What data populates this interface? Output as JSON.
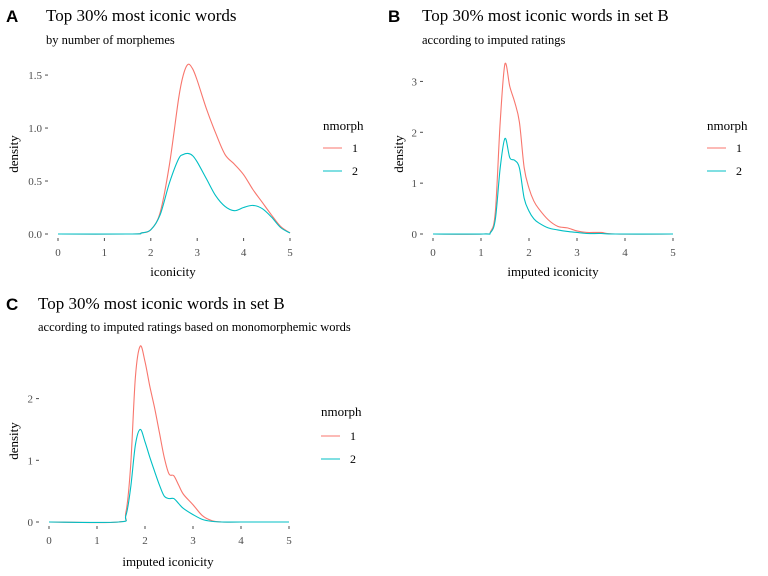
{
  "colors": {
    "series1": "#F8766D",
    "series2": "#00BFC4",
    "tick": "#4d4d4d"
  },
  "chart_data": [
    {
      "panel_label": "A",
      "type": "line",
      "title": "Top 30% most iconic words",
      "subtitle": "by number of morphemes",
      "xlabel": "iconicity",
      "ylabel": "density",
      "xlim": [
        0,
        5
      ],
      "ylim": [
        0,
        1.68
      ],
      "x_ticks": [
        "0",
        "1",
        "2",
        "3",
        "4",
        "5"
      ],
      "y_ticks": [
        "0.0",
        "0.5",
        "1.0",
        "1.5"
      ],
      "y_tick_values": [
        0,
        0.5,
        1.0,
        1.5
      ],
      "legend_title": "nmorph",
      "grid": false,
      "series": [
        {
          "name": "1",
          "color": "#F8766D",
          "x": [
            0,
            1.6,
            1.8,
            2.0,
            2.2,
            2.4,
            2.6,
            2.7,
            2.8,
            2.9,
            3.0,
            3.2,
            3.4,
            3.6,
            3.8,
            4.0,
            4.2,
            4.4,
            4.6,
            4.8,
            5.0
          ],
          "y": [
            0,
            0,
            0.01,
            0.04,
            0.2,
            0.65,
            1.28,
            1.5,
            1.6,
            1.56,
            1.45,
            1.18,
            0.95,
            0.75,
            0.66,
            0.56,
            0.42,
            0.3,
            0.18,
            0.07,
            0.01
          ]
        },
        {
          "name": "2",
          "color": "#00BFC4",
          "x": [
            0,
            1.6,
            1.8,
            2.0,
            2.2,
            2.4,
            2.6,
            2.7,
            2.8,
            2.9,
            3.0,
            3.2,
            3.4,
            3.6,
            3.8,
            4.0,
            4.2,
            4.4,
            4.6,
            4.8,
            5.0
          ],
          "y": [
            0,
            0,
            0.01,
            0.04,
            0.18,
            0.48,
            0.71,
            0.75,
            0.76,
            0.74,
            0.68,
            0.52,
            0.36,
            0.26,
            0.22,
            0.25,
            0.27,
            0.24,
            0.16,
            0.06,
            0.01
          ]
        }
      ]
    },
    {
      "panel_label": "B",
      "type": "line",
      "title": "Top 30% most iconic words in set B",
      "subtitle": "according to imputed ratings",
      "xlabel": "imputed iconicity",
      "ylabel": "density",
      "xlim": [
        0,
        5
      ],
      "ylim": [
        0,
        3.5
      ],
      "x_ticks": [
        "0",
        "1",
        "2",
        "3",
        "4",
        "5"
      ],
      "y_ticks": [
        "0",
        "1",
        "2",
        "3"
      ],
      "y_tick_values": [
        0,
        1,
        2,
        3
      ],
      "legend_title": "nmorph",
      "grid": false,
      "series": [
        {
          "name": "1",
          "color": "#F8766D",
          "x": [
            0,
            1.05,
            1.2,
            1.3,
            1.4,
            1.5,
            1.6,
            1.7,
            1.8,
            1.9,
            2.0,
            2.1,
            2.2,
            2.4,
            2.6,
            2.8,
            3.0,
            3.2,
            3.5,
            3.8,
            5.0
          ],
          "y": [
            0,
            0,
            0.05,
            0.45,
            2.2,
            3.35,
            2.9,
            2.6,
            2.2,
            1.3,
            0.9,
            0.65,
            0.5,
            0.28,
            0.15,
            0.12,
            0.06,
            0.03,
            0.03,
            0.0,
            0
          ]
        },
        {
          "name": "2",
          "color": "#00BFC4",
          "x": [
            0,
            1.05,
            1.2,
            1.3,
            1.4,
            1.5,
            1.6,
            1.7,
            1.8,
            1.9,
            2.0,
            2.1,
            2.2,
            2.4,
            2.6,
            2.8,
            3.0,
            3.2,
            3.5,
            3.8,
            5.0
          ],
          "y": [
            0,
            0,
            0.03,
            0.3,
            1.3,
            1.88,
            1.5,
            1.45,
            1.3,
            0.7,
            0.45,
            0.3,
            0.22,
            0.12,
            0.08,
            0.05,
            0.03,
            0.01,
            0.01,
            0.0,
            0
          ]
        }
      ]
    },
    {
      "panel_label": "C",
      "type": "line",
      "title": "Top 30% most iconic words in set B",
      "subtitle": "according to imputed ratings based on monomorphemic words",
      "xlabel": "imputed iconicity",
      "ylabel": "density",
      "xlim": [
        0,
        5
      ],
      "ylim": [
        0,
        2.95
      ],
      "x_ticks": [
        "0",
        "1",
        "2",
        "3",
        "4",
        "5"
      ],
      "y_ticks": [
        "0",
        "1",
        "2"
      ],
      "y_tick_values": [
        0,
        1,
        2
      ],
      "legend_title": "nmorph",
      "grid": false,
      "series": [
        {
          "name": "1",
          "color": "#F8766D",
          "x": [
            0,
            1.45,
            1.6,
            1.7,
            1.8,
            1.9,
            2.0,
            2.1,
            2.2,
            2.3,
            2.4,
            2.5,
            2.6,
            2.7,
            2.8,
            3.0,
            3.2,
            3.4,
            3.6,
            4.0,
            5.0
          ],
          "y": [
            0,
            0,
            0.15,
            0.9,
            2.35,
            2.85,
            2.6,
            2.2,
            1.85,
            1.45,
            1.05,
            0.78,
            0.75,
            0.6,
            0.45,
            0.28,
            0.1,
            0.02,
            0,
            0,
            0
          ]
        },
        {
          "name": "2",
          "color": "#00BFC4",
          "x": [
            0,
            1.45,
            1.6,
            1.7,
            1.8,
            1.9,
            2.0,
            2.1,
            2.2,
            2.3,
            2.4,
            2.5,
            2.6,
            2.7,
            2.8,
            3.0,
            3.2,
            3.4,
            3.6,
            4.0,
            5.0
          ],
          "y": [
            0,
            0,
            0.1,
            0.55,
            1.25,
            1.5,
            1.3,
            1.05,
            0.82,
            0.6,
            0.42,
            0.38,
            0.38,
            0.3,
            0.22,
            0.12,
            0.04,
            0.01,
            0,
            0,
            0
          ]
        }
      ]
    }
  ]
}
